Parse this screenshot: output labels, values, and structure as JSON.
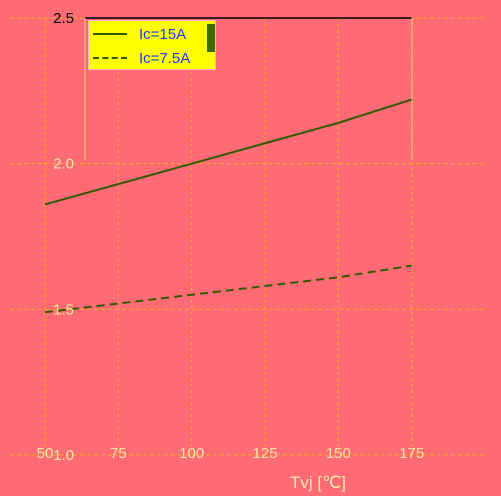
{
  "chart_data": {
    "type": "line",
    "title": "",
    "xlabel": "Tvj [℃]",
    "ylabel": "",
    "x": [
      50,
      75,
      100,
      125,
      150,
      175
    ],
    "xticks": [
      "50",
      "75",
      "100",
      "125",
      "150",
      "175"
    ],
    "yticks": [
      "1.0",
      "1.5",
      "2.0",
      "2.5"
    ],
    "ylim": [
      1.0,
      2.5
    ],
    "series": [
      {
        "name": "Ic=15A",
        "style": "solid",
        "values": [
          1.86,
          1.93,
          2.0,
          2.07,
          2.14,
          2.22
        ]
      },
      {
        "name": "Ic=7.5A",
        "style": "dashed",
        "values": [
          1.49,
          1.52,
          1.55,
          1.58,
          1.61,
          1.65
        ]
      }
    ],
    "grid": true,
    "legend_position": "top-left",
    "colors": {
      "background": "#ff6b74",
      "line": "#2f5a00",
      "grid": "#ffc000",
      "frame": "#000000",
      "legend_bg": "#ffff00",
      "legend_text": "#1a3aff",
      "tick_text": "#ffe7a6"
    }
  }
}
